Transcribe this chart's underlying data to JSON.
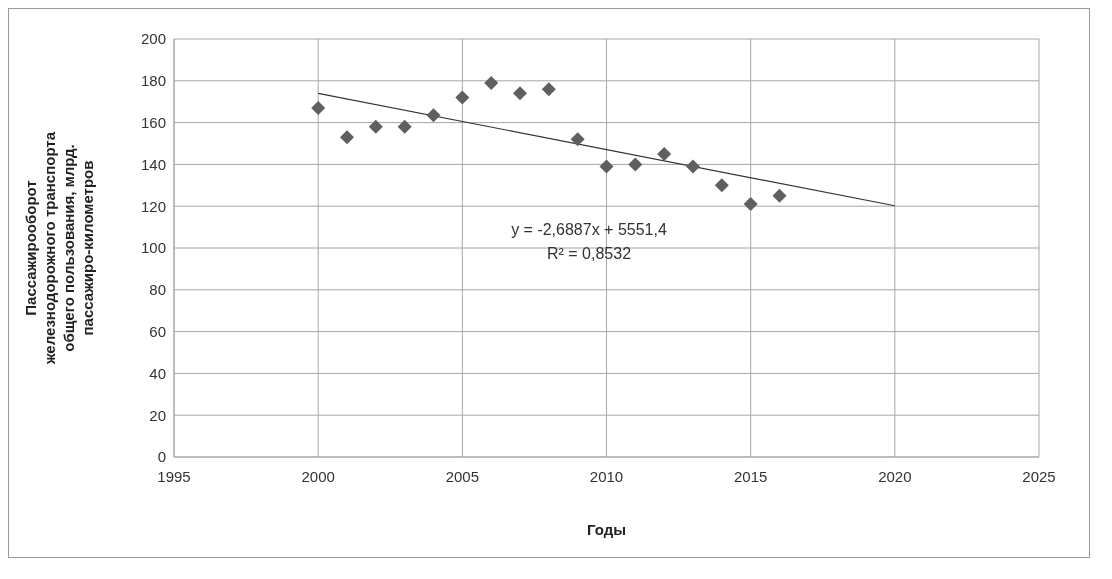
{
  "chart_data": {
    "type": "scatter",
    "xlabel": "Годы",
    "ylabel": "Пассажирооборот железнодорожного транспорта общего пользования, млрд. пассажиро-километров",
    "x": [
      2000,
      2001,
      2002,
      2003,
      2004,
      2005,
      2006,
      2007,
      2008,
      2009,
      2010,
      2011,
      2012,
      2013,
      2014,
      2015,
      2016
    ],
    "series": [
      {
        "color": "#5f5f5f",
        "marker": "diamond",
        "values": [
          167,
          153,
          158,
          158,
          163.5,
          172,
          179,
          174,
          176,
          152,
          139,
          140,
          145,
          139,
          130,
          121,
          125
        ]
      },
      {
        "type": "line",
        "color": "#333333",
        "x": [
          2000,
          2020
        ],
        "values": [
          174,
          120.2
        ]
      }
    ],
    "annotations": [
      "y = -2,6887x + 5551,4",
      "R² = 0,8532"
    ],
    "xlim": [
      1995,
      2025
    ],
    "xticks": [
      1995,
      2000,
      2005,
      2010,
      2015,
      2020,
      2025
    ],
    "ylim": [
      0,
      200
    ],
    "yticks": [
      0,
      20,
      40,
      60,
      80,
      100,
      120,
      140,
      160,
      180,
      200
    ],
    "grid": true,
    "legend": false,
    "line_style": "solid"
  }
}
